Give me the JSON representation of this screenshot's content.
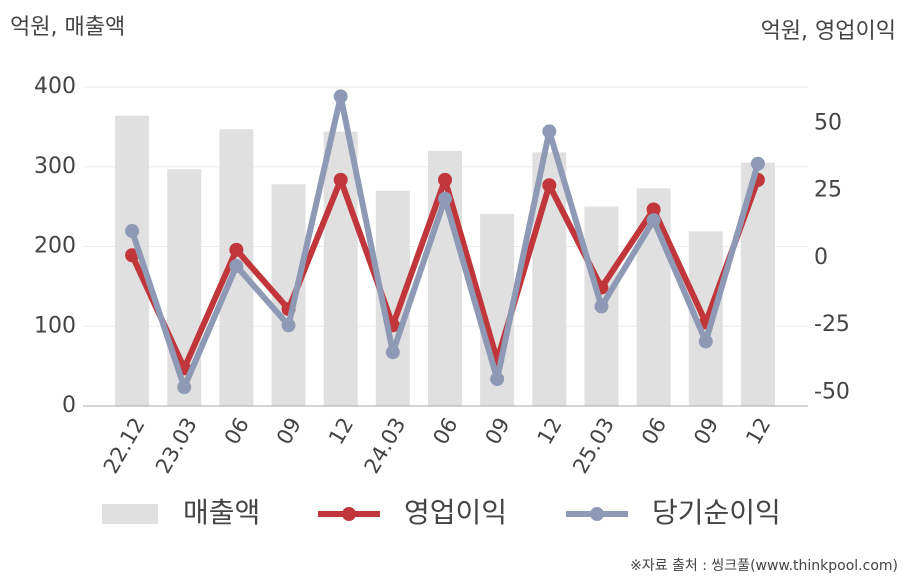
{
  "chart_data": {
    "type": "bar_line",
    "left_unit": "억원, 매출액",
    "right_unit": "억원, 영업이익",
    "source": "※자료 출처 : 씽크풀(www.thinkpool.com)",
    "categories": [
      "22.12",
      "23.03",
      "06",
      "09",
      "12",
      "24.03",
      "06",
      "09",
      "12",
      "25.03",
      "06",
      "09",
      "12"
    ],
    "series": [
      {
        "name": "매출액",
        "color": "#e0e0e0",
        "kind": "bar",
        "axis": "y",
        "values": [
          364,
          297,
          347,
          278,
          344,
          270,
          320,
          241,
          318,
          250,
          273,
          219,
          305
        ]
      },
      {
        "name": "영업이익",
        "color": "#c0363a",
        "kind": "line",
        "axis": "y2",
        "values": [
          1,
          -41,
          3,
          -19,
          29,
          -25,
          29,
          -38,
          27,
          -11,
          18,
          -24,
          29
        ]
      },
      {
        "name": "당기순이익",
        "color": "#8e9ab5",
        "kind": "line",
        "axis": "y2",
        "values": [
          10,
          -48,
          -3,
          -25,
          60,
          -35,
          22,
          -45,
          47,
          -18,
          14,
          -31,
          35
        ]
      }
    ],
    "ylim": [
      0,
      400
    ],
    "yticks": [
      0,
      100,
      200,
      300,
      400
    ],
    "y2lim": [
      -55,
      63.5
    ],
    "y2ticks": [
      -50,
      -25,
      0,
      25,
      50
    ],
    "grid": true
  }
}
